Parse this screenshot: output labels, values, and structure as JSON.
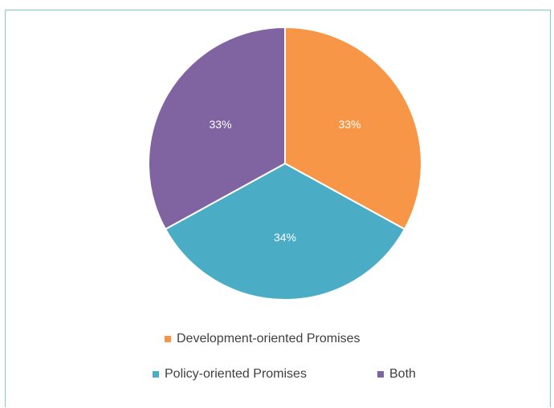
{
  "chart_data": {
    "type": "pie",
    "categories": [
      "Development-oriented Promises",
      "Policy-oriented Promises",
      "Both"
    ],
    "values": [
      33,
      34,
      33
    ],
    "data_labels": [
      "33%",
      "34%",
      "33%"
    ],
    "colors": [
      "#f79646",
      "#4bacc6",
      "#8064a2"
    ],
    "legend_placement": "bottom"
  },
  "legend": {
    "items": [
      {
        "label": "Development-oriented Promises",
        "color": "#f79646"
      },
      {
        "label": "Policy-oriented Promises",
        "color": "#4bacc6"
      },
      {
        "label": "Both",
        "color": "#8064a2"
      }
    ]
  }
}
